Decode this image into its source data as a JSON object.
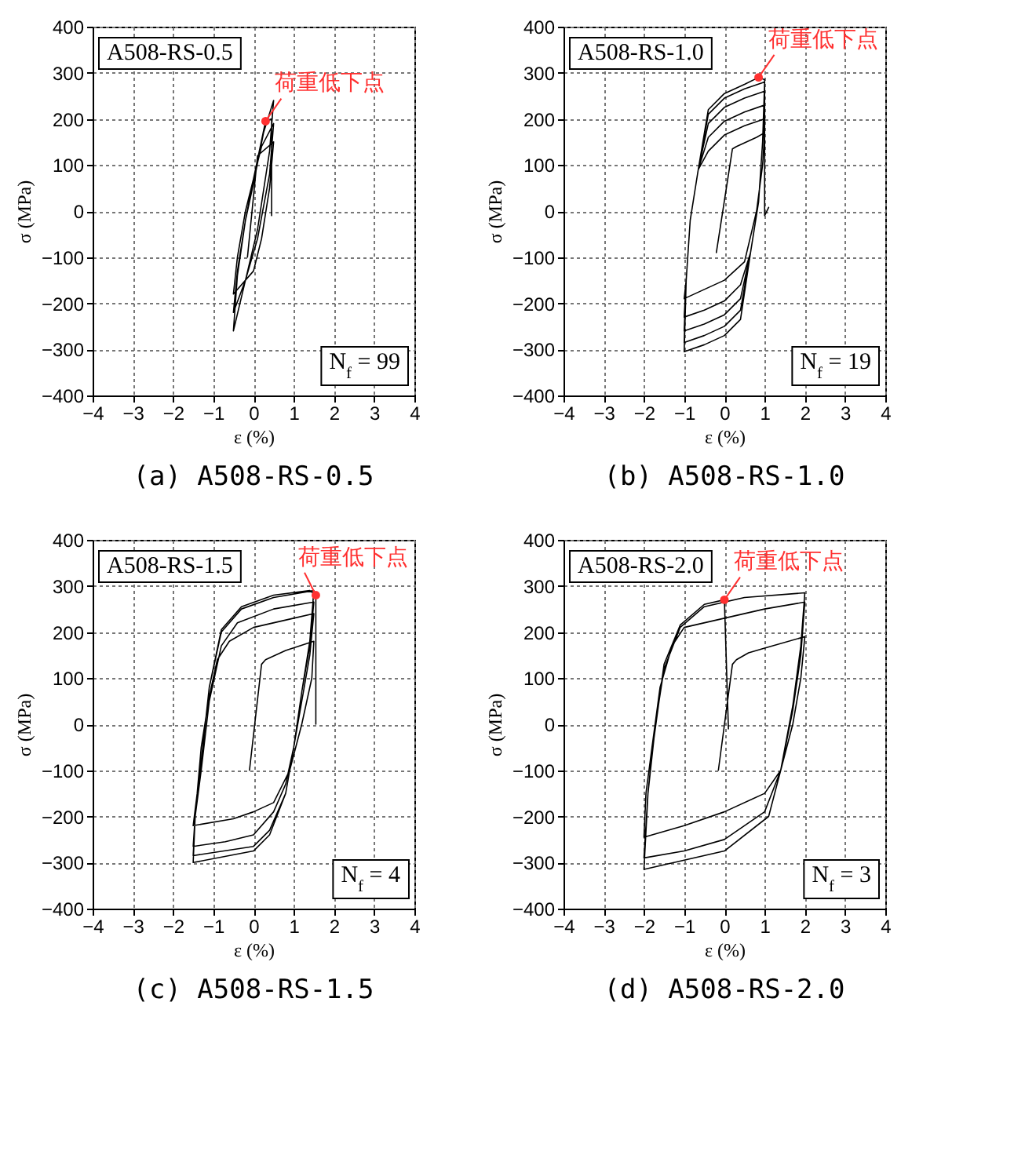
{
  "chart_data": [
    {
      "type": "line",
      "title": "(a)  A508-RS-0.5",
      "xlabel": "ε (%)",
      "ylabel": "σ (MPa)",
      "annotations": [
        "A508-RS-0.5",
        {
          "text": "荷重低下点",
          "x": 0.3,
          "y": 195
        },
        "N$_{f}$ = 99"
      ],
      "series": [
        {
          "color": "#000000",
          "x": [
            -0.15,
            0.1,
            0.5,
            0.4,
            0.2,
            0,
            -0.5,
            -0.4,
            -0.2,
            0,
            0.2,
            0.5,
            0.4,
            0.1,
            -0.2,
            -0.5,
            -0.4,
            -0.2,
            0,
            0.25,
            0.5,
            0.4,
            0.1,
            -0.2,
            -0.5,
            -0.4,
            -0.2,
            0,
            0.3,
            0.45,
            0.45
          ],
          "values": [
            -100,
            120,
            150,
            50,
            -60,
            -130,
            -180,
            -100,
            0,
            70,
            140,
            190,
            80,
            -60,
            -150,
            -220,
            -130,
            -20,
            60,
            170,
            240,
            130,
            -40,
            -150,
            -260,
            -140,
            -20,
            70,
            195,
            200,
            -10
          ]
        }
      ],
      "xlim": [
        -4,
        4
      ],
      "ylim": [
        -400,
        400
      ],
      "xticks": [
        -4,
        -3,
        -2,
        -1,
        0,
        1,
        2,
        3,
        4
      ],
      "yticks": [
        -400,
        -300,
        -200,
        -100,
        0,
        100,
        200,
        300,
        400
      ],
      "grid": true
    },
    {
      "type": "line",
      "title": "(b)  A508-RS-1.0",
      "xlabel": "ε (%)",
      "ylabel": "σ (MPa)",
      "annotations": [
        "A508-RS-1.0",
        {
          "text": "荷重低下点",
          "x": 0.85,
          "y": 290
        },
        "N$_{f}$ = 19"
      ],
      "series": [
        {
          "color": "#000000",
          "x": [
            -0.2,
            0.2,
            0.3,
            0.8,
            1,
            0.95,
            0.8,
            0.5,
            0,
            -0.5,
            -1,
            -0.95,
            -0.85,
            -0.65,
            -0.4,
            0,
            0.5,
            1,
            0.95,
            0.85,
            0.65,
            0.4,
            0,
            -0.5,
            -1,
            -0.95,
            -0.85,
            -0.65,
            -0.4,
            0,
            0.5,
            1,
            0.95,
            0.85,
            0.65,
            0.4,
            0,
            -0.5,
            -1,
            -0.95,
            -0.85,
            -0.65,
            -0.4,
            0,
            0.5,
            1,
            0.95,
            0.85,
            0.65,
            0.4,
            0,
            -0.5,
            -1,
            -0.95,
            -0.85,
            -0.65,
            -0.4,
            0,
            0.5,
            1,
            0.95,
            0.85,
            0.65,
            0.4,
            0,
            -0.5,
            -1,
            -0.95,
            -0.85,
            -0.65,
            -0.4,
            0,
            0.5,
            0.85,
            1,
            1,
            1.1
          ],
          "values": [
            -90,
            135,
            140,
            160,
            170,
            100,
            0,
            -110,
            -150,
            -170,
            -190,
            -150,
            -20,
            90,
            130,
            165,
            185,
            200,
            150,
            20,
            -90,
            -160,
            -195,
            -215,
            -230,
            -150,
            -20,
            90,
            160,
            195,
            215,
            230,
            150,
            20,
            -90,
            -190,
            -225,
            -245,
            -260,
            -150,
            -20,
            90,
            190,
            225,
            245,
            260,
            150,
            20,
            -90,
            -215,
            -250,
            -270,
            -285,
            -150,
            -20,
            90,
            210,
            245,
            265,
            280,
            150,
            20,
            -90,
            -235,
            -270,
            -290,
            -305,
            -150,
            -20,
            90,
            220,
            255,
            275,
            290,
            285,
            -10,
            8
          ]
        }
      ],
      "xlim": [
        -4,
        4
      ],
      "ylim": [
        -400,
        400
      ],
      "xticks": [
        -4,
        -3,
        -2,
        -1,
        0,
        1,
        2,
        3,
        4
      ],
      "yticks": [
        -400,
        -300,
        -200,
        -100,
        0,
        100,
        200,
        300,
        400
      ],
      "grid": true
    },
    {
      "type": "line",
      "title": "(c)  A508-RS-1.5",
      "xlabel": "ε (%)",
      "ylabel": "σ (MPa)",
      "annotations": [
        "A508-RS-1.5",
        {
          "text": "荷重低下点",
          "x": 1.55,
          "y": 280
        },
        "N$_{f}$ = 4"
      ],
      "series": [
        {
          "color": "#000000",
          "x": [
            -0.1,
            0.2,
            0.3,
            0.8,
            1.5,
            1.45,
            1.2,
            0.9,
            0.5,
            0,
            -0.5,
            -1.5,
            -1.4,
            -1.3,
            -1.1,
            -0.9,
            -0.6,
            0,
            1,
            1.5,
            1.4,
            1.2,
            1,
            0.8,
            0.5,
            0,
            -0.7,
            -1.5,
            -1.45,
            -1.3,
            -1.1,
            -0.8,
            -0.4,
            0.5,
            1.5,
            1.4,
            1.2,
            1,
            0.8,
            0.4,
            0,
            -1.5,
            -1.45,
            -1.3,
            -1.1,
            -0.8,
            -0.3,
            0.5,
            1.5,
            1.4,
            1.2,
            1,
            0.8,
            0.4,
            0,
            -1.5,
            -1.45,
            -1.3,
            -1.1,
            -0.8,
            -0.3,
            0.5,
            1.4,
            1.55,
            1.55
          ],
          "values": [
            -100,
            130,
            140,
            160,
            180,
            100,
            0,
            -100,
            -170,
            -190,
            -205,
            -220,
            -150,
            -50,
            60,
            140,
            180,
            210,
            230,
            240,
            150,
            50,
            -50,
            -130,
            -190,
            -240,
            -255,
            -265,
            -200,
            -100,
            50,
            170,
            220,
            250,
            265,
            170,
            70,
            -50,
            -150,
            -230,
            -265,
            -285,
            -200,
            -80,
            80,
            200,
            250,
            275,
            290,
            180,
            70,
            -50,
            -150,
            -240,
            -275,
            -300,
            -200,
            -80,
            80,
            205,
            255,
            280,
            290,
            280,
            0
          ]
        }
      ],
      "xlim": [
        -4,
        4
      ],
      "ylim": [
        -400,
        400
      ],
      "xticks": [
        -4,
        -3,
        -2,
        -1,
        0,
        1,
        2,
        3,
        4
      ],
      "yticks": [
        -400,
        -300,
        -200,
        -100,
        0,
        100,
        200,
        300,
        400
      ],
      "grid": true
    },
    {
      "type": "line",
      "title": "(d)  A508-RS-2.0",
      "xlabel": "ε (%)",
      "ylabel": "σ (MPa)",
      "annotations": [
        "A508-RS-2.0",
        {
          "text": "荷重低下点",
          "x": 0,
          "y": 270
        },
        "N$_{f}$ = 3"
      ],
      "series": [
        {
          "color": "#000000",
          "x": [
            -0.15,
            0.2,
            0.3,
            0.6,
            1,
            2,
            1.9,
            1.7,
            1.4,
            1,
            0,
            -1,
            -2,
            -1.95,
            -1.8,
            -1.6,
            -1.3,
            -1,
            0,
            1,
            2,
            1.9,
            1.7,
            1.4,
            1,
            0,
            -1,
            -2,
            -1.9,
            -1.75,
            -1.5,
            -1.1,
            -0.5,
            0.5,
            2,
            1.9,
            1.7,
            1.4,
            1.1,
            0,
            -2,
            -1.9,
            -1.75,
            -1.5,
            -1.1,
            -0.5,
            0,
            0.1
          ],
          "values": [
            -100,
            130,
            140,
            155,
            165,
            190,
            100,
            0,
            -100,
            -150,
            -190,
            -220,
            -245,
            -150,
            -50,
            80,
            170,
            210,
            230,
            250,
            265,
            150,
            30,
            -100,
            -190,
            -250,
            -275,
            -290,
            -150,
            -20,
            120,
            210,
            255,
            275,
            285,
            170,
            40,
            -100,
            -200,
            -275,
            -315,
            -150,
            -30,
            130,
            215,
            260,
            270,
            -10
          ]
        }
      ],
      "xlim": [
        -4,
        4
      ],
      "ylim": [
        -400,
        400
      ],
      "xticks": [
        -4,
        -3,
        -2,
        -1,
        0,
        1,
        2,
        3,
        4
      ],
      "yticks": [
        -400,
        -300,
        -200,
        -100,
        0,
        100,
        200,
        300,
        400
      ],
      "grid": true
    }
  ]
}
